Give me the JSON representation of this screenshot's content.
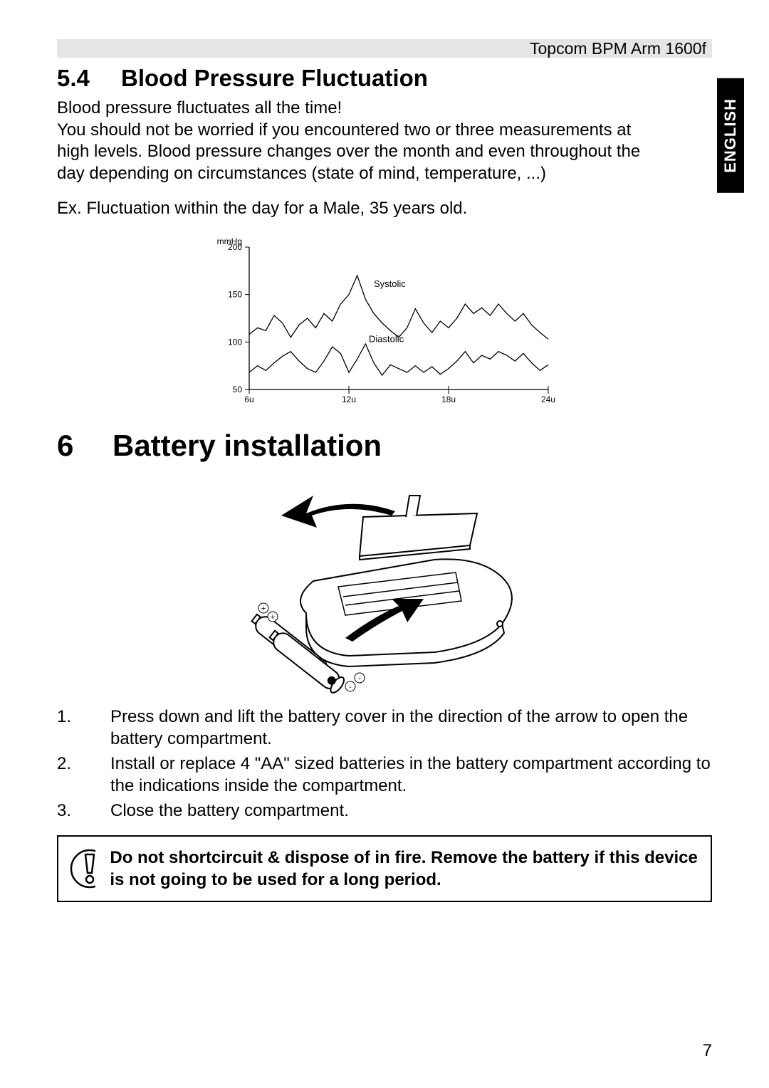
{
  "header": {
    "product": "Topcom BPM Arm 1600f"
  },
  "sideTab": {
    "label": "ENGLISH"
  },
  "section54": {
    "number": "5.4",
    "title": "Blood Pressure Fluctuation",
    "para1_l1": "Blood pressure fluctuates all the time!",
    "para1_l2": "You should not be worried if you encountered two or three measurements at",
    "para1_l3": "high levels. Blood pressure changes over the month and even throughout the",
    "para1_l4": "day depending on circumstances (state of mind, temperature, ...)",
    "para2": "Ex. Fluctuation within the day for a Male, 35 years old."
  },
  "chart": {
    "type": "line",
    "unit": "mmHg",
    "ylim": [
      50,
      200
    ],
    "yticks": [
      50,
      100,
      150,
      200
    ],
    "xticks": [
      "6u",
      "12u",
      "18u",
      "24u"
    ],
    "xlim": [
      6,
      24
    ],
    "series_labels": {
      "systolic": "Systolic",
      "diastolic": "Diastolic"
    },
    "systolic": [
      [
        6,
        108
      ],
      [
        6.5,
        115
      ],
      [
        7,
        112
      ],
      [
        7.5,
        128
      ],
      [
        8,
        120
      ],
      [
        8.5,
        105
      ],
      [
        9,
        118
      ],
      [
        9.5,
        125
      ],
      [
        10,
        115
      ],
      [
        10.5,
        130
      ],
      [
        11,
        122
      ],
      [
        11.5,
        140
      ],
      [
        12,
        150
      ],
      [
        12.5,
        170
      ],
      [
        13,
        145
      ],
      [
        13.5,
        130
      ],
      [
        14,
        120
      ],
      [
        14.5,
        112
      ],
      [
        15,
        105
      ],
      [
        15.5,
        115
      ],
      [
        16,
        135
      ],
      [
        16.5,
        120
      ],
      [
        17,
        110
      ],
      [
        17.5,
        122
      ],
      [
        18,
        115
      ],
      [
        18.5,
        125
      ],
      [
        19,
        140
      ],
      [
        19.5,
        130
      ],
      [
        20,
        136
      ],
      [
        20.5,
        128
      ],
      [
        21,
        140
      ],
      [
        21.5,
        130
      ],
      [
        22,
        122
      ],
      [
        22.5,
        130
      ],
      [
        23,
        118
      ],
      [
        23.5,
        110
      ],
      [
        24,
        103
      ]
    ],
    "diastolic": [
      [
        6,
        68
      ],
      [
        6.5,
        75
      ],
      [
        7,
        70
      ],
      [
        7.5,
        78
      ],
      [
        8,
        85
      ],
      [
        8.5,
        90
      ],
      [
        9,
        80
      ],
      [
        9.5,
        72
      ],
      [
        10,
        68
      ],
      [
        10.5,
        80
      ],
      [
        11,
        95
      ],
      [
        11.5,
        88
      ],
      [
        12,
        68
      ],
      [
        12.5,
        82
      ],
      [
        13,
        98
      ],
      [
        13.5,
        78
      ],
      [
        14,
        65
      ],
      [
        14.5,
        76
      ],
      [
        15,
        72
      ],
      [
        15.5,
        68
      ],
      [
        16,
        75
      ],
      [
        16.5,
        68
      ],
      [
        17,
        74
      ],
      [
        17.5,
        66
      ],
      [
        18,
        72
      ],
      [
        18.5,
        80
      ],
      [
        19,
        90
      ],
      [
        19.5,
        78
      ],
      [
        20,
        86
      ],
      [
        20.5,
        82
      ],
      [
        21,
        90
      ],
      [
        21.5,
        86
      ],
      [
        22,
        80
      ],
      [
        22.5,
        88
      ],
      [
        23,
        78
      ],
      [
        23.5,
        70
      ],
      [
        24,
        76
      ]
    ],
    "line_color": "#000000",
    "line_width": 1.3,
    "background": "#ffffff"
  },
  "chapter6": {
    "number": "6",
    "title": "Battery installation"
  },
  "steps": {
    "s1": "Press down and lift the battery cover in the direction of the arrow to open the battery compartment.",
    "s2": "Install or replace 4 \"AA\" sized batteries in the battery compartment according to the indications inside the compartment.",
    "s3": "Close the battery compartment."
  },
  "warning": {
    "text": "Do not shortcircuit & dispose of in fire. Remove the battery if this device is not going to be used for a long period."
  },
  "pageNumber": "7"
}
